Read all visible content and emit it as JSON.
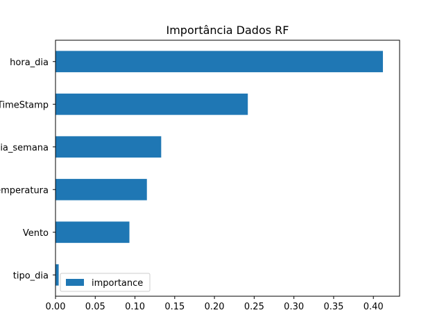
{
  "chart_data": {
    "type": "bar",
    "orientation": "horizontal",
    "title": "Importância Dados RF",
    "xlabel": "",
    "ylabel": "",
    "categories": [
      "tipo_dia",
      "Vento",
      "Temperatura",
      "dia_semana",
      "TimeStamp",
      "hora_dia"
    ],
    "series": [
      {
        "name": "importance",
        "values": [
          0.004,
          0.093,
          0.115,
          0.133,
          0.242,
          0.412
        ]
      }
    ],
    "xlim": [
      0.0,
      0.433
    ],
    "xticks": [
      0.0,
      0.05,
      0.1,
      0.15,
      0.2,
      0.25,
      0.3,
      0.35,
      0.4
    ],
    "xtick_labels": [
      "0.00",
      "0.05",
      "0.10",
      "0.15",
      "0.20",
      "0.25",
      "0.30",
      "0.35",
      "0.40"
    ],
    "grid": false,
    "legend_position": "lower-left",
    "bar_color": "#1f77b4"
  }
}
